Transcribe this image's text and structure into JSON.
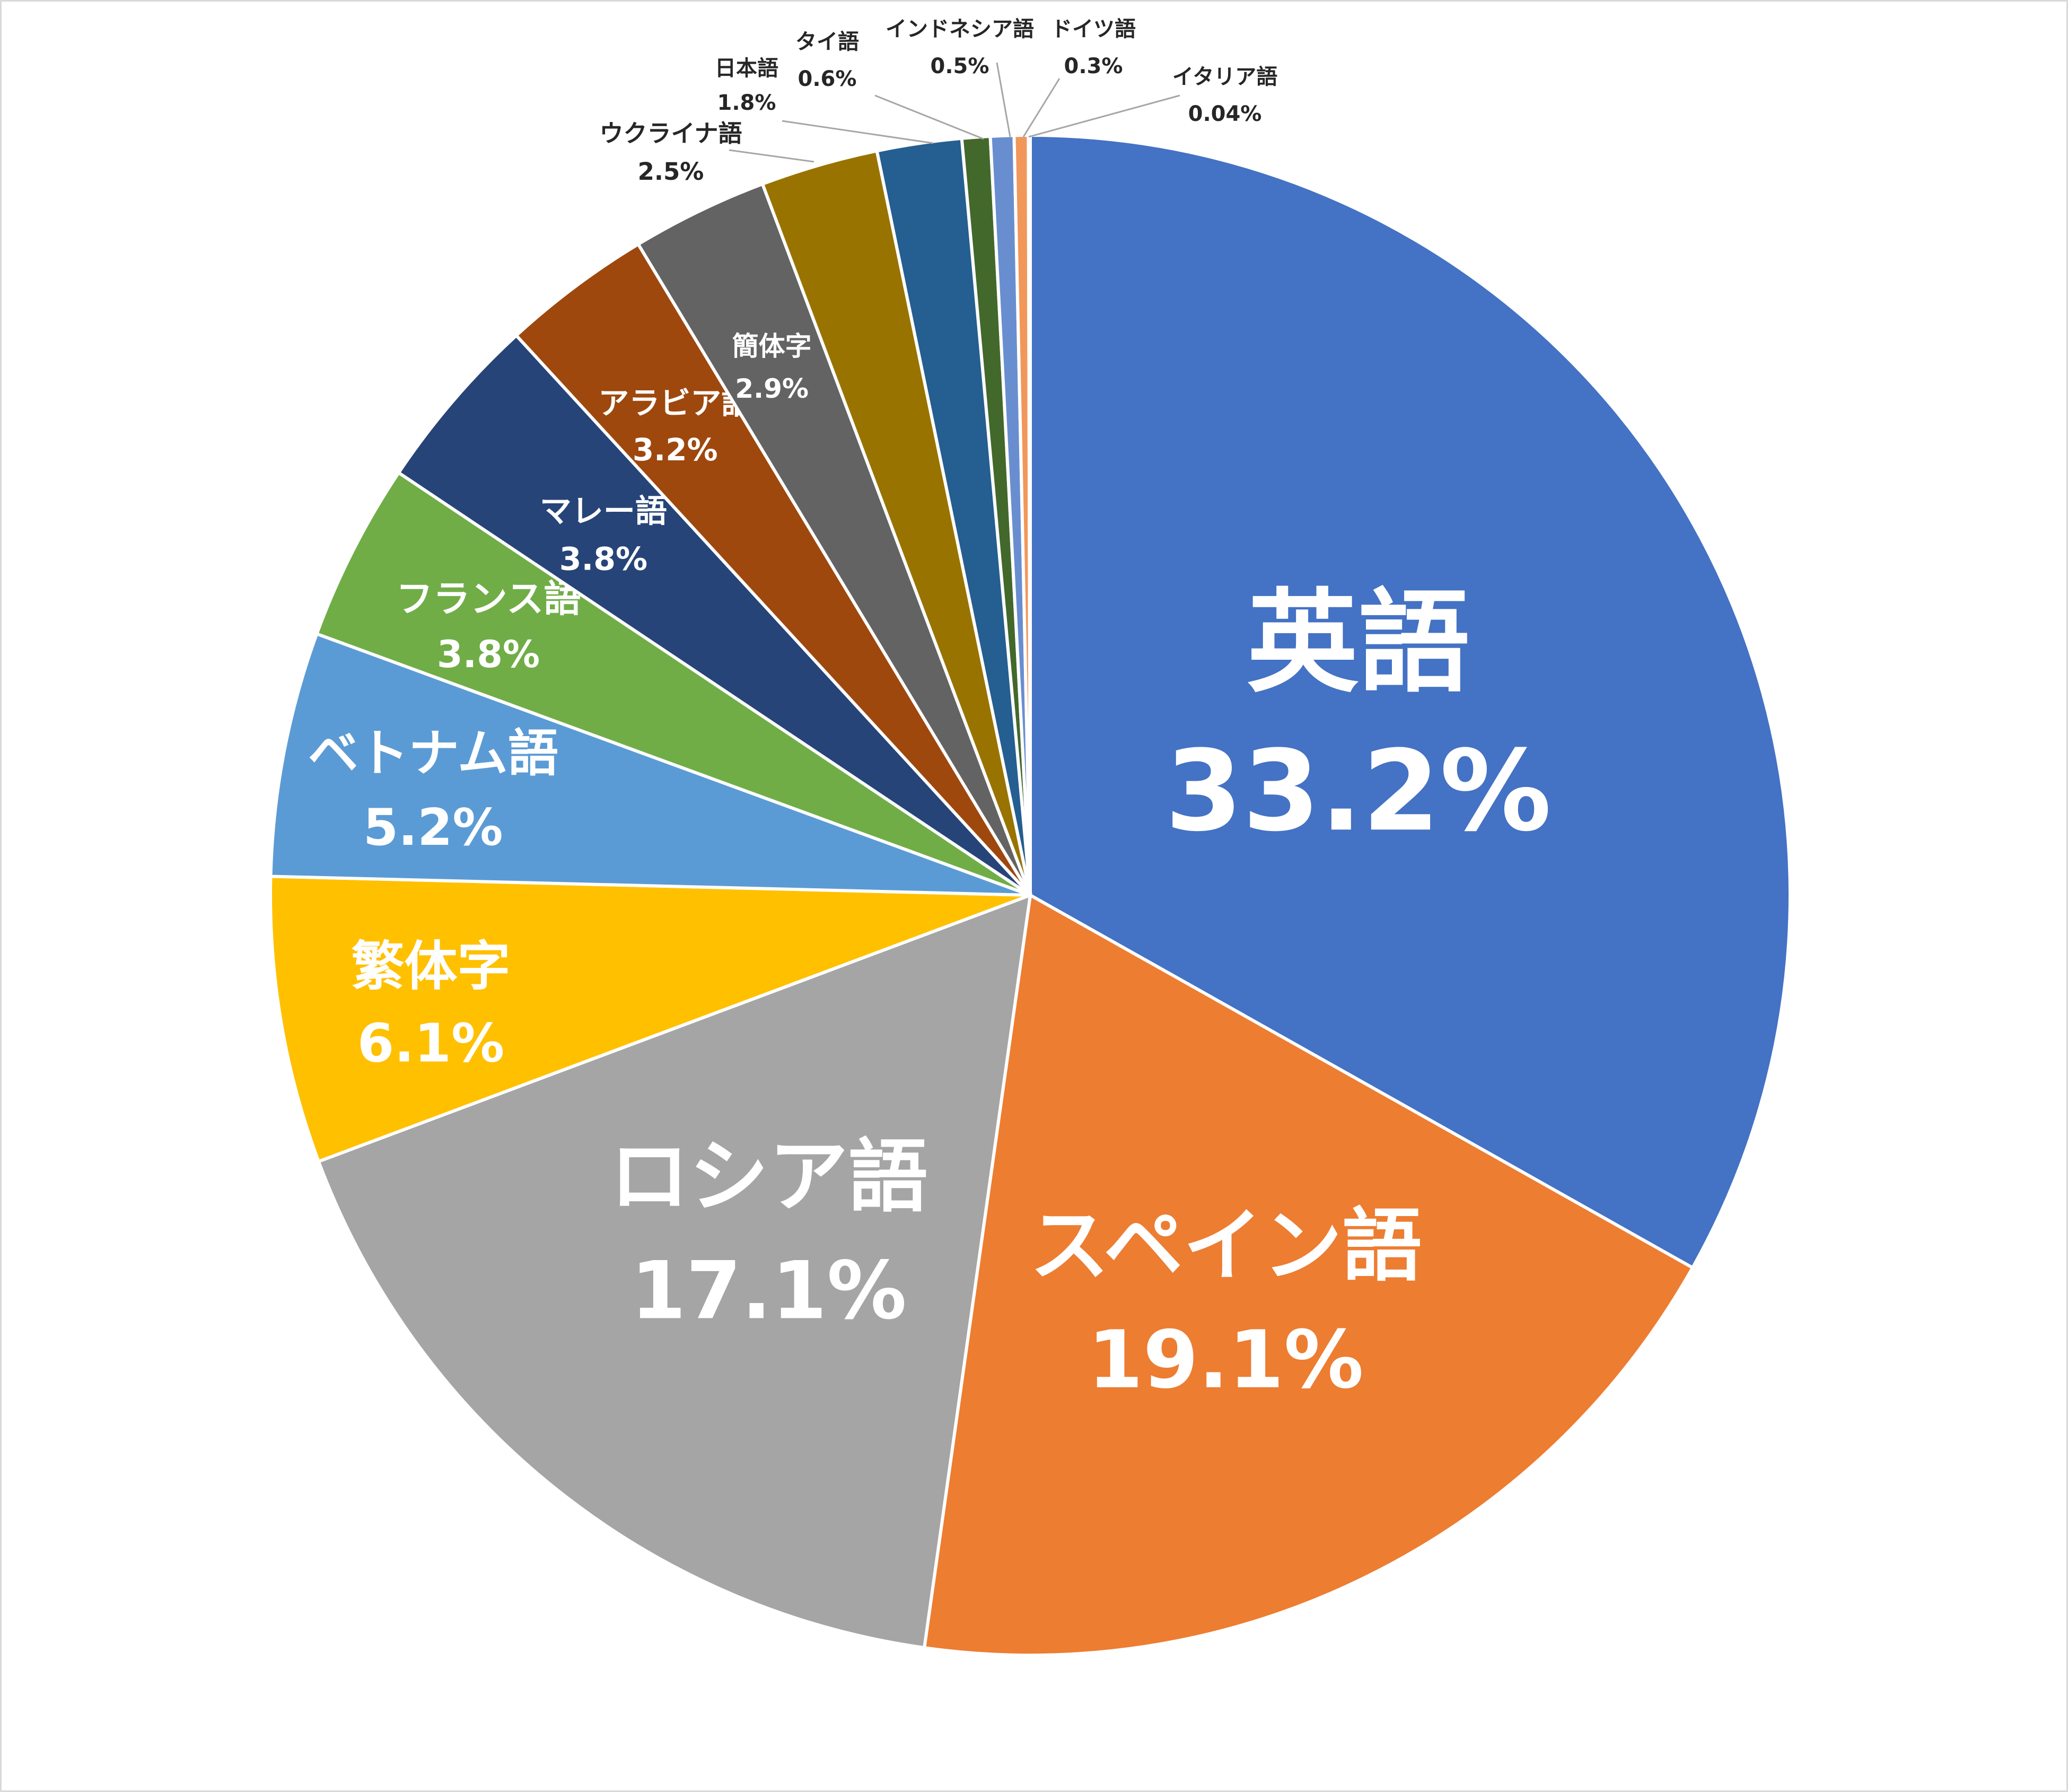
{
  "chart_data": {
    "type": "pie",
    "title": "",
    "start_angle_deg": 0,
    "direction": "clockwise",
    "slices": [
      {
        "name": "英語",
        "value": 33.2,
        "label": "33.2%",
        "color": "#4472C4"
      },
      {
        "name": "スペイン語",
        "value": 19.1,
        "label": "19.1%",
        "color": "#ED7D31"
      },
      {
        "name": "ロシア語",
        "value": 17.1,
        "label": "17.1%",
        "color": "#A5A5A5"
      },
      {
        "name": "繁体字",
        "value": 6.1,
        "label": "6.1%",
        "color": "#FFC000"
      },
      {
        "name": "ベトナム語",
        "value": 5.2,
        "label": "5.2%",
        "color": "#5B9BD5"
      },
      {
        "name": "フランス語",
        "value": 3.8,
        "label": "3.8%",
        "color": "#70AD47"
      },
      {
        "name": "マレー語",
        "value": 3.8,
        "label": "3.8%",
        "color": "#264478"
      },
      {
        "name": "アラビア語",
        "value": 3.2,
        "label": "3.2%",
        "color": "#9E480E"
      },
      {
        "name": "簡体字",
        "value": 2.9,
        "label": "2.9%",
        "color": "#636363"
      },
      {
        "name": "ウクライナ語",
        "value": 2.5,
        "label": "2.5%",
        "color": "#997300"
      },
      {
        "name": "日本語",
        "value": 1.8,
        "label": "1.8%",
        "color": "#255E91"
      },
      {
        "name": "タイ語",
        "value": 0.6,
        "label": "0.6%",
        "color": "#43682B"
      },
      {
        "name": "インドネシア語",
        "value": 0.5,
        "label": "0.5%",
        "color": "#698ED0"
      },
      {
        "name": "ドイツ語",
        "value": 0.3,
        "label": "0.3%",
        "color": "#F1975A"
      },
      {
        "name": "イタリア語",
        "value": 0.04,
        "label": "0.04%",
        "color": "#B7B7B7"
      }
    ]
  }
}
